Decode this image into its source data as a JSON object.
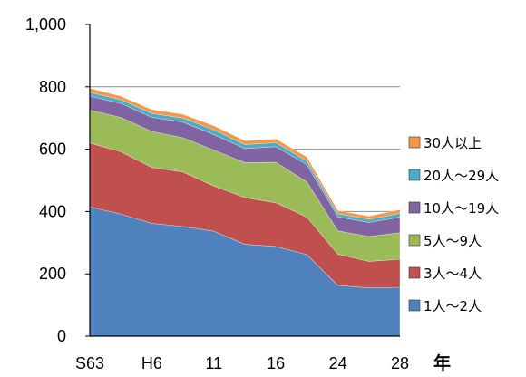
{
  "chart_data": {
    "type": "area",
    "stacked": true,
    "title": "",
    "xlabel": "年",
    "ylabel": "",
    "ylim": [
      0,
      1000
    ],
    "yticks": [
      "0",
      "200",
      "400",
      "600",
      "800",
      "1,000"
    ],
    "grid": true,
    "legend_position": "right",
    "x_points": [
      "S63",
      "",
      "H6",
      "",
      "11",
      "",
      "16",
      "",
      "24",
      "",
      "28"
    ],
    "x_tick_labels": [
      "S63",
      "H6",
      "11",
      "16",
      "24",
      "28"
    ],
    "series": [
      {
        "name": "1人～2人",
        "color": "#4F81BD",
        "values": [
          415,
          392,
          362,
          352,
          337,
          295,
          288,
          262,
          163,
          155,
          157
        ]
      },
      {
        "name": "3人～4人",
        "color": "#C0504D",
        "values": [
          205,
          200,
          180,
          175,
          145,
          150,
          140,
          120,
          100,
          85,
          90
        ]
      },
      {
        "name": "5人～9人",
        "color": "#9BBB59",
        "values": [
          105,
          110,
          115,
          110,
          115,
          112,
          130,
          113,
          75,
          80,
          85
        ]
      },
      {
        "name": "10人～19人",
        "color": "#8064A2",
        "values": [
          45,
          45,
          45,
          50,
          50,
          45,
          50,
          55,
          45,
          45,
          50
        ]
      },
      {
        "name": "20人～29人",
        "color": "#4BACC6",
        "values": [
          12,
          12,
          13,
          13,
          15,
          13,
          13,
          12,
          10,
          10,
          12
        ]
      },
      {
        "name": "30人以上",
        "color": "#F79646",
        "values": [
          13,
          11,
          12,
          12,
          13,
          12,
          12,
          13,
          10,
          10,
          12
        ]
      }
    ]
  }
}
